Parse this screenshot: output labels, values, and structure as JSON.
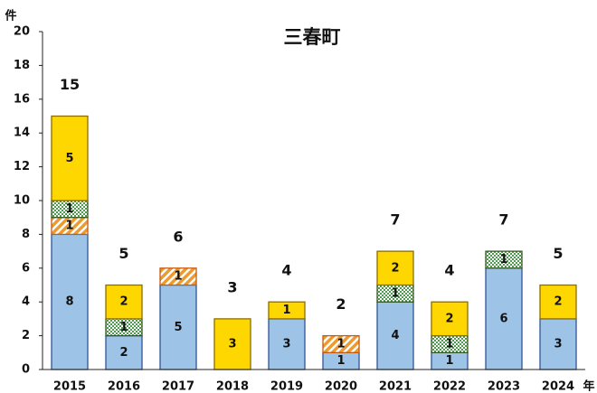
{
  "chart_data": {
    "type": "stacked_bar",
    "title": "三春町",
    "y_unit": "件",
    "x_unit": "年",
    "categories": [
      "2015",
      "2016",
      "2017",
      "2018",
      "2019",
      "2020",
      "2021",
      "2022",
      "2023",
      "2024"
    ],
    "series": [
      {
        "color": "#9dc3e6",
        "border": "#2f5597",
        "pattern": "solid",
        "values": [
          8,
          2,
          5,
          null,
          3,
          1,
          4,
          1,
          6,
          3
        ]
      },
      {
        "color": "#ed9a2f",
        "border": "#c55a11",
        "pattern": "diagonal",
        "values": [
          1,
          null,
          1,
          null,
          null,
          1,
          null,
          null,
          null,
          null
        ]
      },
      {
        "color": "#4c9a4c",
        "border": "#385723",
        "pattern": "check",
        "values": [
          1,
          1,
          null,
          null,
          null,
          null,
          1,
          1,
          1,
          null
        ]
      },
      {
        "color": "#ffd700",
        "border": "#8c6d00",
        "pattern": "solid",
        "values": [
          5,
          2,
          null,
          3,
          1,
          null,
          2,
          2,
          null,
          2
        ]
      }
    ],
    "totals": [
      15,
      5,
      6,
      3,
      4,
      2,
      7,
      4,
      7,
      5
    ],
    "ylim": [
      0,
      20
    ],
    "yticks": [
      0,
      2,
      4,
      6,
      8,
      10,
      12,
      14,
      16,
      18,
      20
    ],
    "grid": false
  }
}
